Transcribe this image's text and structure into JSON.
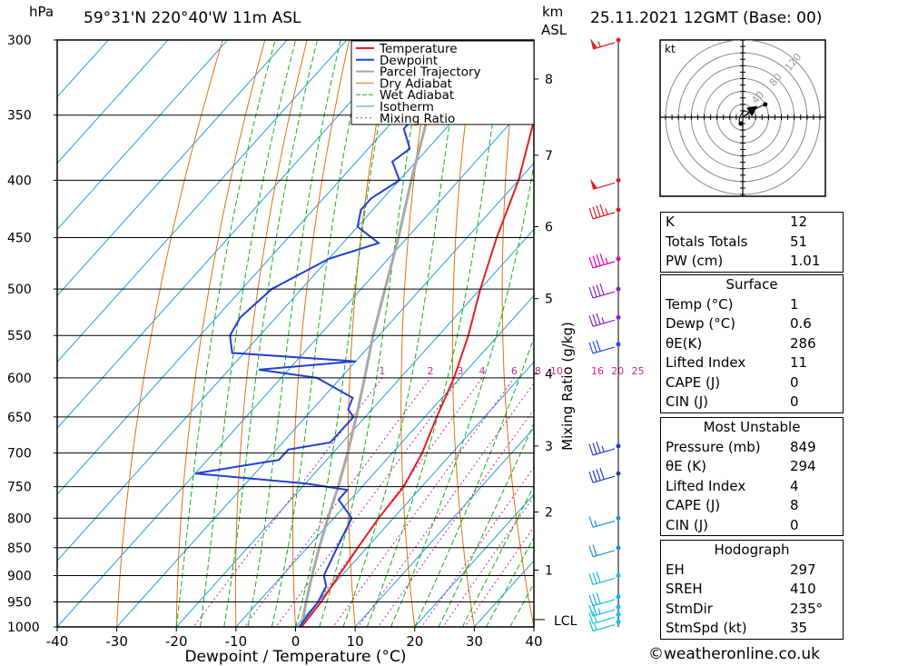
{
  "header": {
    "hpa_label": "hPa",
    "location": "59°31'N  220°40'W  11m  ASL",
    "km_label": "km",
    "asl_label": "ASL",
    "datetime": "25.11.2021  12GMT  (Base: 00)"
  },
  "chart_data": {
    "type": "line",
    "title": "59°31'N  220°40'W  11m  ASL",
    "xlabel": "Dewpoint / Temperature (°C)",
    "ylabel_left": "hPa",
    "ylabel_right": "Mixing Ratio (g/kg)",
    "xlim": [
      -40,
      40
    ],
    "ylim": [
      1000,
      300
    ],
    "x_ticks": [
      -40,
      -30,
      -20,
      -10,
      0,
      10,
      20,
      30,
      40
    ],
    "x_tick_labels": [
      "-40",
      "-30",
      "-20",
      "-10",
      "0",
      "10",
      "20",
      "30",
      "40"
    ],
    "pressure_levels": [
      300,
      350,
      400,
      450,
      500,
      550,
      600,
      650,
      700,
      750,
      800,
      850,
      900,
      950,
      1000
    ],
    "km_ticks": [
      {
        "km": 1,
        "p": 890
      },
      {
        "km": 2,
        "p": 790
      },
      {
        "km": 3,
        "p": 690
      },
      {
        "km": 4,
        "p": 595
      },
      {
        "km": 5,
        "p": 510
      },
      {
        "km": 6,
        "p": 440
      },
      {
        "km": 7,
        "p": 380
      },
      {
        "km": 8,
        "p": 325
      }
    ],
    "lcl_label": "LCL",
    "lcl_p": 985,
    "mixing_ratio_labels": [
      "1",
      "2",
      "3",
      "4",
      "6",
      "8",
      "10",
      "16",
      "20",
      "25"
    ],
    "mixing_ratio_values": [
      1,
      2,
      3,
      4,
      6,
      8,
      10,
      16,
      20,
      25
    ],
    "legend": [
      "Temperature",
      "Dewpoint",
      "Parcel Trajectory",
      "Dry Adiabat",
      "Wet Adiabat",
      "Isotherm",
      "Mixing Ratio"
    ],
    "colors": {
      "temperature": "#e02020",
      "dewpoint": "#2040d0",
      "parcel": "#a8a8a8",
      "dry_adiabat": "#e07010",
      "wet_adiabat": "#10b010",
      "isotherm": "#20a0e0",
      "mixing_ratio": "#d020a0"
    },
    "series": [
      {
        "name": "Temperature",
        "points": [
          [
            1000,
            1
          ],
          [
            950,
            0.5
          ],
          [
            900,
            -0.5
          ],
          [
            850,
            -1.5
          ],
          [
            800,
            -2.5
          ],
          [
            750,
            -3
          ],
          [
            700,
            -5
          ],
          [
            650,
            -8
          ],
          [
            600,
            -11
          ],
          [
            550,
            -15
          ],
          [
            500,
            -20
          ],
          [
            450,
            -25
          ],
          [
            400,
            -30
          ],
          [
            350,
            -37
          ],
          [
            300,
            -44
          ]
        ]
      },
      {
        "name": "Dewpoint",
        "points": [
          [
            1000,
            0.6
          ],
          [
            950,
            0
          ],
          [
            920,
            -1
          ],
          [
            900,
            -3
          ],
          [
            850,
            -5
          ],
          [
            800,
            -7
          ],
          [
            770,
            -12
          ],
          [
            755,
            -12
          ],
          [
            745,
            -20
          ],
          [
            730,
            -40
          ],
          [
            710,
            -28
          ],
          [
            695,
            -28
          ],
          [
            685,
            -22
          ],
          [
            650,
            -22
          ],
          [
            640,
            -24
          ],
          [
            625,
            -25
          ],
          [
            600,
            -34
          ],
          [
            590,
            -45
          ],
          [
            580,
            -30
          ],
          [
            570,
            -52
          ],
          [
            550,
            -55
          ],
          [
            530,
            -56
          ],
          [
            500,
            -55
          ],
          [
            470,
            -50
          ],
          [
            455,
            -44
          ],
          [
            440,
            -50
          ],
          [
            425,
            -52
          ],
          [
            415,
            -52
          ],
          [
            400,
            -50
          ],
          [
            385,
            -54
          ],
          [
            375,
            -53
          ],
          [
            360,
            -57
          ],
          [
            345,
            -57
          ],
          [
            332,
            -58
          ],
          [
            320,
            -63
          ],
          [
            300,
            -66
          ]
        ]
      },
      {
        "name": "Parcel Trajectory",
        "points": [
          [
            1000,
            1
          ],
          [
            950,
            -2
          ],
          [
            900,
            -5
          ],
          [
            850,
            -8
          ],
          [
            800,
            -11
          ],
          [
            750,
            -14
          ],
          [
            700,
            -17.5
          ],
          [
            650,
            -21.5
          ],
          [
            600,
            -26
          ],
          [
            550,
            -31
          ],
          [
            500,
            -36
          ],
          [
            450,
            -41.5
          ],
          [
            400,
            -48
          ],
          [
            350,
            -55
          ],
          [
            300,
            -63
          ]
        ]
      }
    ],
    "wind_barbs": [
      {
        "p": 300,
        "dir": 235,
        "kt": 55
      },
      {
        "p": 400,
        "dir": 240,
        "kt": 50
      },
      {
        "p": 425,
        "dir": 240,
        "kt": 45
      },
      {
        "p": 470,
        "dir": 245,
        "kt": 45
      },
      {
        "p": 500,
        "dir": 250,
        "kt": 40
      },
      {
        "p": 530,
        "dir": 255,
        "kt": 35
      },
      {
        "p": 560,
        "dir": 260,
        "kt": 30
      },
      {
        "p": 690,
        "dir": 270,
        "kt": 35
      },
      {
        "p": 730,
        "dir": 270,
        "kt": 40
      },
      {
        "p": 800,
        "dir": 200,
        "kt": 15
      },
      {
        "p": 850,
        "dir": 190,
        "kt": 20
      },
      {
        "p": 900,
        "dir": 160,
        "kt": 30
      },
      {
        "p": 940,
        "dir": 140,
        "kt": 30
      },
      {
        "p": 960,
        "dir": 130,
        "kt": 25
      },
      {
        "p": 975,
        "dir": 120,
        "kt": 20
      },
      {
        "p": 990,
        "dir": 110,
        "kt": 15
      }
    ]
  },
  "hodograph": {
    "unit_label": "kt",
    "ring_labels": [
      "40",
      "80",
      "120"
    ],
    "trace_kt": [
      [
        -3,
        -10
      ],
      [
        -6,
        -5
      ],
      [
        -4,
        2
      ],
      [
        0,
        8
      ],
      [
        4,
        10
      ],
      [
        8,
        8
      ],
      [
        18,
        12
      ],
      [
        28,
        17
      ],
      [
        35,
        20
      ]
    ],
    "storm_motion": {
      "dir_deg": 235,
      "speed_kt": 35
    }
  },
  "indices": {
    "general": [
      {
        "label": "K",
        "value": "12"
      },
      {
        "label": "Totals Totals",
        "value": "51"
      },
      {
        "label": "PW (cm)",
        "value": "1.01"
      }
    ],
    "surface": {
      "title": "Surface",
      "rows": [
        {
          "label": "Temp (°C)",
          "value": "1"
        },
        {
          "label": "Dewp (°C)",
          "value": "0.6"
        },
        {
          "label": "θE(K)",
          "value": "286"
        },
        {
          "label": "Lifted Index",
          "value": "11"
        },
        {
          "label": "CAPE (J)",
          "value": "0"
        },
        {
          "label": "CIN (J)",
          "value": "0"
        }
      ]
    },
    "most_unstable": {
      "title": "Most Unstable",
      "rows": [
        {
          "label": "Pressure (mb)",
          "value": "849"
        },
        {
          "label": "θE (K)",
          "value": "294"
        },
        {
          "label": "Lifted Index",
          "value": "4"
        },
        {
          "label": "CAPE (J)",
          "value": "8"
        },
        {
          "label": "CIN (J)",
          "value": "0"
        }
      ]
    },
    "hodograph_box": {
      "title": "Hodograph",
      "rows": [
        {
          "label": "EH",
          "value": "297"
        },
        {
          "label": "SREH",
          "value": "410"
        },
        {
          "label": "StmDir",
          "value": "235°"
        },
        {
          "label": "StmSpd (kt)",
          "value": "35"
        }
      ]
    }
  },
  "footer": {
    "credit": "©weatheronline.co.uk"
  }
}
